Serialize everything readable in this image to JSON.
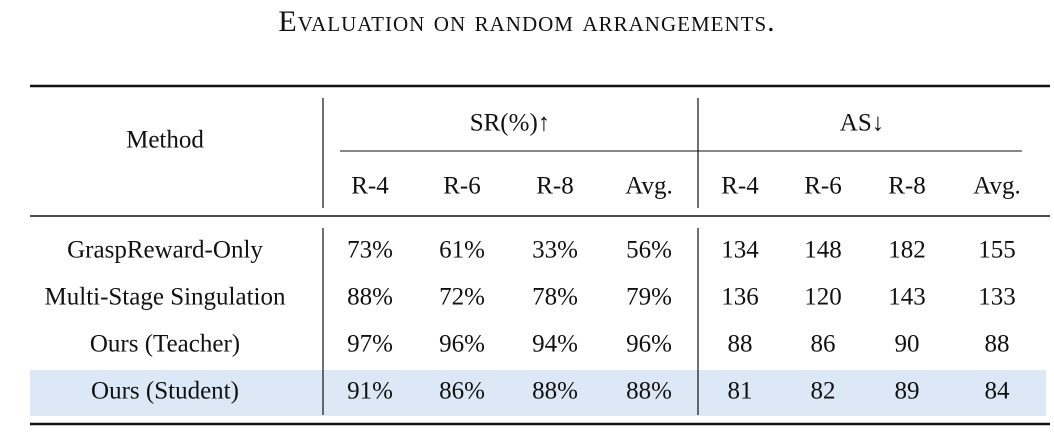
{
  "title": "Evaluation on random arrangements.",
  "table": {
    "header": {
      "method": "Method",
      "groups": [
        "SR(%)↑",
        "AS↓"
      ],
      "subheaders": [
        "R-4",
        "R-6",
        "R-8",
        "Avg.",
        "R-4",
        "R-6",
        "R-8",
        "Avg."
      ]
    },
    "rows": [
      [
        "GraspReward-Only",
        "73%",
        "61%",
        "33%",
        "56%",
        "134",
        "148",
        "182",
        "155"
      ],
      [
        "Multi-Stage Singulation",
        "88%",
        "72%",
        "78%",
        "79%",
        "136",
        "120",
        "143",
        "133"
      ],
      [
        "Ours (Teacher)",
        "97%",
        "96%",
        "94%",
        "96%",
        "88",
        "86",
        "90",
        "88"
      ],
      [
        "Ours (Student)",
        "91%",
        "86%",
        "88%",
        "88%",
        "81",
        "82",
        "89",
        "84"
      ]
    ]
  }
}
